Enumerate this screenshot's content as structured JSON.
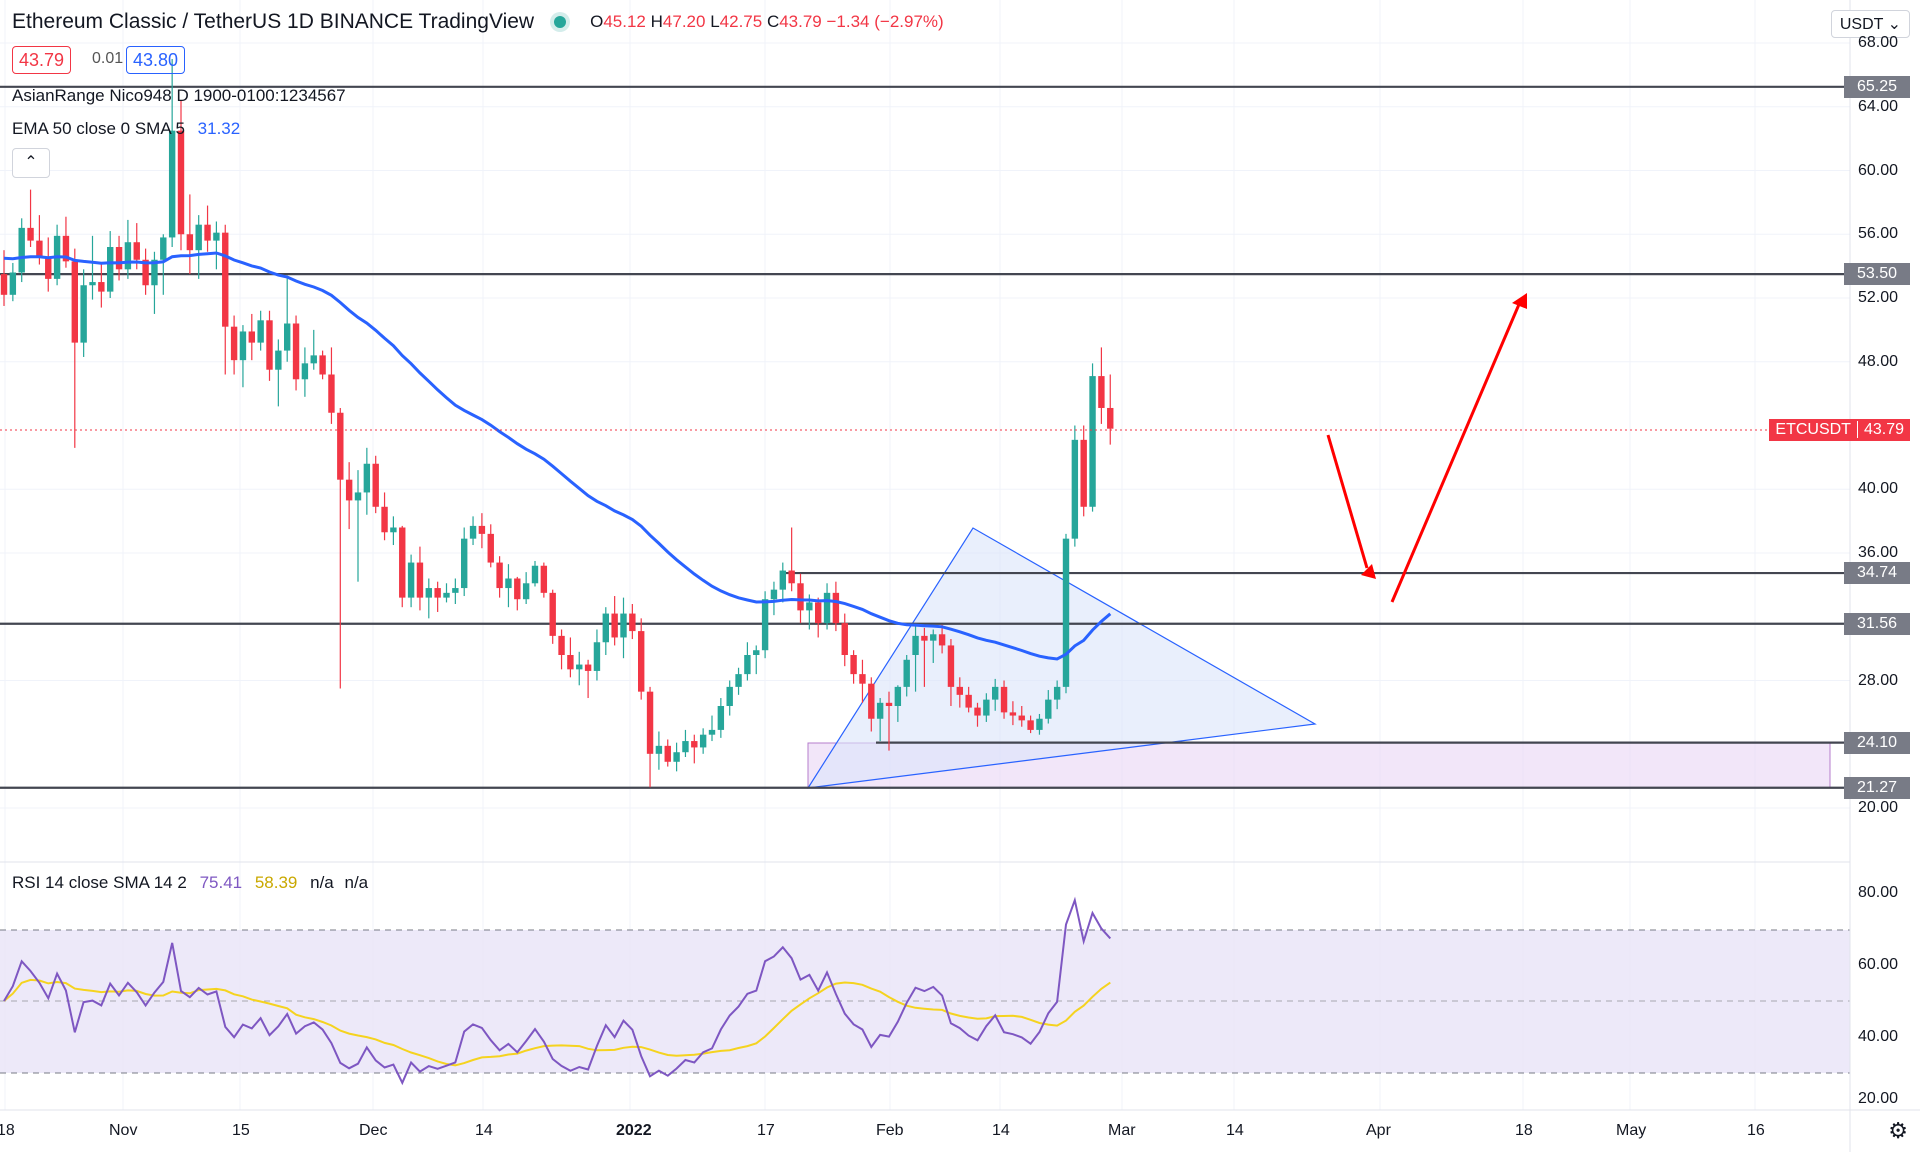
{
  "header": {
    "title": "Ethereum Classic / TetherUS  1D  BINANCE  TradingView",
    "o_label": "O",
    "o": "45.12",
    "h_label": "H",
    "h": "47.20",
    "l_label": "L",
    "l": "42.75",
    "c_label": "C",
    "c": "43.79",
    "change": "−1.34 (−2.97%)",
    "sell_price": "43.79",
    "spread": "0.01",
    "buy_price": "43.80"
  },
  "indicators": {
    "asian_range": "AsianRange Nico948 D 1900-0100:1234567",
    "ema_label": "EMA 50 close 0 SMA 5",
    "ema_value": "31.32",
    "rsi_label": "RSI 14 close SMA 14 2",
    "rsi_value": "75.41",
    "rsi_sma_value": "58.39",
    "rsi_na1": "n/a",
    "rsi_na2": "n/a"
  },
  "currency_selector": "USDT",
  "symbol_tag": "ETCUSDT",
  "current_price": "43.79",
  "price_axis": [
    "68.00",
    "64.00",
    "60.00",
    "56.00",
    "52.00",
    "48.00",
    "40.00",
    "36.00",
    "28.00",
    "20.00"
  ],
  "level_labels": [
    "65.25",
    "53.50",
    "34.74",
    "31.56",
    "24.10",
    "21.27"
  ],
  "rsi_axis": [
    "80.00",
    "60.00",
    "40.00",
    "20.00"
  ],
  "time_axis": [
    "18",
    "Nov",
    "15",
    "Dec",
    "14",
    "2022",
    "17",
    "Feb",
    "14",
    "Mar",
    "14",
    "Apr",
    "18",
    "May",
    "16"
  ],
  "colors": {
    "up": "#26a69a",
    "down": "#f23645",
    "ema": "#2962ff",
    "rsi": "#7e57c2",
    "rsi_sma": "#f5d31f",
    "level": "#434651",
    "arrow": "#ff0000"
  },
  "chart_data": {
    "type": "candlestick",
    "series": [
      {
        "name": "ETCUSDT",
        "x_start": "2021-10-18",
        "interval": "1D",
        "ohlc": [
          [
            53.5,
            55.0,
            51.5,
            52.2
          ],
          [
            52.2,
            54.2,
            51.8,
            53.6
          ],
          [
            53.6,
            57.0,
            53.0,
            56.4
          ],
          [
            56.4,
            58.8,
            55.2,
            55.6
          ],
          [
            55.6,
            57.2,
            54.1,
            54.6
          ],
          [
            54.6,
            55.8,
            52.4,
            53.2
          ],
          [
            53.2,
            56.6,
            52.8,
            55.9
          ],
          [
            55.9,
            57.1,
            53.9,
            54.3
          ],
          [
            54.3,
            55.1,
            42.6,
            49.2
          ],
          [
            49.2,
            53.8,
            48.3,
            52.8
          ],
          [
            52.8,
            55.9,
            51.9,
            53.0
          ],
          [
            53.0,
            54.1,
            51.4,
            52.4
          ],
          [
            52.4,
            56.2,
            52.0,
            55.2
          ],
          [
            55.2,
            55.9,
            53.1,
            53.8
          ],
          [
            53.8,
            56.9,
            53.2,
            55.5
          ],
          [
            55.5,
            56.7,
            53.8,
            54.4
          ],
          [
            54.4,
            55.1,
            52.2,
            52.8
          ],
          [
            52.8,
            54.9,
            51.0,
            54.4
          ],
          [
            54.4,
            56.0,
            52.2,
            55.8
          ],
          [
            55.8,
            67.0,
            55.2,
            62.5
          ],
          [
            62.5,
            64.4,
            55.0,
            56.0
          ],
          [
            56.0,
            58.5,
            53.5,
            55.0
          ],
          [
            55.0,
            57.2,
            53.2,
            56.6
          ],
          [
            56.6,
            57.8,
            54.9,
            55.6
          ],
          [
            55.6,
            56.8,
            53.8,
            56.1
          ],
          [
            56.1,
            56.6,
            47.2,
            50.2
          ],
          [
            50.2,
            50.9,
            47.2,
            48.1
          ],
          [
            48.1,
            50.3,
            46.4,
            49.9
          ],
          [
            49.9,
            51.0,
            48.1,
            49.2
          ],
          [
            49.2,
            51.2,
            48.7,
            50.6
          ],
          [
            50.6,
            51.2,
            46.8,
            47.5
          ],
          [
            47.5,
            49.4,
            45.2,
            48.7
          ],
          [
            48.7,
            53.4,
            48.0,
            50.4
          ],
          [
            50.4,
            50.9,
            46.2,
            46.9
          ],
          [
            46.9,
            48.9,
            45.8,
            47.9
          ],
          [
            47.9,
            50.0,
            47.5,
            48.4
          ],
          [
            48.4,
            48.7,
            46.9,
            47.2
          ],
          [
            47.2,
            48.9,
            44.1,
            44.8
          ],
          [
            44.8,
            45.1,
            27.5,
            40.6
          ],
          [
            40.6,
            41.7,
            37.5,
            39.3
          ],
          [
            39.3,
            41.2,
            34.2,
            39.8
          ],
          [
            39.8,
            42.6,
            38.4,
            41.6
          ],
          [
            41.6,
            42.1,
            38.5,
            38.9
          ],
          [
            38.9,
            39.8,
            36.8,
            37.3
          ],
          [
            37.3,
            38.3,
            36.5,
            37.6
          ],
          [
            37.6,
            37.7,
            32.6,
            33.2
          ],
          [
            33.2,
            35.9,
            32.6,
            35.4
          ],
          [
            35.4,
            36.4,
            32.4,
            33.2
          ],
          [
            33.2,
            34.4,
            31.9,
            33.8
          ],
          [
            33.8,
            34.2,
            32.3,
            33.2
          ],
          [
            33.2,
            34.1,
            32.9,
            33.5
          ],
          [
            33.5,
            34.4,
            32.8,
            33.8
          ],
          [
            33.8,
            37.6,
            33.3,
            36.9
          ],
          [
            36.9,
            38.3,
            36.5,
            37.7
          ],
          [
            37.7,
            38.5,
            36.3,
            37.2
          ],
          [
            37.2,
            37.8,
            35.1,
            35.4
          ],
          [
            35.4,
            35.8,
            33.2,
            33.8
          ],
          [
            33.8,
            35.3,
            32.6,
            34.4
          ],
          [
            34.4,
            34.5,
            32.4,
            33.1
          ],
          [
            33.1,
            34.8,
            32.8,
            34.1
          ],
          [
            34.1,
            35.5,
            33.9,
            35.2
          ],
          [
            35.2,
            35.4,
            33.2,
            33.5
          ],
          [
            33.5,
            33.7,
            30.3,
            30.8
          ],
          [
            30.8,
            31.2,
            28.7,
            29.6
          ],
          [
            29.6,
            30.7,
            28.2,
            28.7
          ],
          [
            28.7,
            29.8,
            27.7,
            29.0
          ],
          [
            29.0,
            29.3,
            26.9,
            28.6
          ],
          [
            28.6,
            31.2,
            28.0,
            30.4
          ],
          [
            30.4,
            32.6,
            29.6,
            32.2
          ],
          [
            32.2,
            33.3,
            30.2,
            30.7
          ],
          [
            30.7,
            33.2,
            29.4,
            32.2
          ],
          [
            32.2,
            32.8,
            30.6,
            31.1
          ],
          [
            31.1,
            31.9,
            26.8,
            27.3
          ],
          [
            27.3,
            27.6,
            21.3,
            23.4
          ],
          [
            23.4,
            24.8,
            22.4,
            23.9
          ],
          [
            23.9,
            24.3,
            22.6,
            22.9
          ],
          [
            22.9,
            24.1,
            22.3,
            23.5
          ],
          [
            23.5,
            24.9,
            23.2,
            24.2
          ],
          [
            24.2,
            24.6,
            22.8,
            23.8
          ],
          [
            23.8,
            25.0,
            23.4,
            24.6
          ],
          [
            24.6,
            25.8,
            24.2,
            24.9
          ],
          [
            24.9,
            26.9,
            24.4,
            26.4
          ],
          [
            26.4,
            28.0,
            25.8,
            27.6
          ],
          [
            27.6,
            28.8,
            27.1,
            28.4
          ],
          [
            28.4,
            30.4,
            28.0,
            29.6
          ],
          [
            29.6,
            30.2,
            28.4,
            29.9
          ],
          [
            29.9,
            33.6,
            29.4,
            33.1
          ],
          [
            33.1,
            34.2,
            32.1,
            33.7
          ],
          [
            33.7,
            35.4,
            32.9,
            34.9
          ],
          [
            34.9,
            37.6,
            33.6,
            34.1
          ],
          [
            34.1,
            34.7,
            31.6,
            32.4
          ],
          [
            32.4,
            33.4,
            31.2,
            32.9
          ],
          [
            32.9,
            33.2,
            30.7,
            31.6
          ],
          [
            31.6,
            34.1,
            31.2,
            33.5
          ],
          [
            33.5,
            34.2,
            31.1,
            31.6
          ],
          [
            31.6,
            32.2,
            28.9,
            29.6
          ],
          [
            29.6,
            29.9,
            27.8,
            28.4
          ],
          [
            28.4,
            29.3,
            26.6,
            27.8
          ],
          [
            27.8,
            28.2,
            24.8,
            25.6
          ],
          [
            25.6,
            26.9,
            24.2,
            26.6
          ],
          [
            26.6,
            27.3,
            23.6,
            26.4
          ],
          [
            26.4,
            27.7,
            25.4,
            27.6
          ],
          [
            27.6,
            29.6,
            27.0,
            29.3
          ],
          [
            29.6,
            31.5,
            27.3,
            30.8
          ],
          [
            30.8,
            31.3,
            27.6,
            30.5
          ],
          [
            30.5,
            31.2,
            29.1,
            30.9
          ],
          [
            30.9,
            31.5,
            29.7,
            30.2
          ],
          [
            30.2,
            30.6,
            26.4,
            27.6
          ],
          [
            27.6,
            28.2,
            26.3,
            27.1
          ],
          [
            27.1,
            27.6,
            26.0,
            26.3
          ],
          [
            26.3,
            26.6,
            25.1,
            25.8
          ],
          [
            25.8,
            27.2,
            25.4,
            26.8
          ],
          [
            26.8,
            28.1,
            26.1,
            27.6
          ],
          [
            27.6,
            28.0,
            25.6,
            26.0
          ],
          [
            26.0,
            26.7,
            25.2,
            25.8
          ],
          [
            25.8,
            26.4,
            25.1,
            25.5
          ],
          [
            25.5,
            25.8,
            24.7,
            24.9
          ],
          [
            24.9,
            25.9,
            24.6,
            25.6
          ],
          [
            25.6,
            27.4,
            25.3,
            26.8
          ],
          [
            26.8,
            28.0,
            26.2,
            27.6
          ],
          [
            27.6,
            37.2,
            27.2,
            36.9
          ],
          [
            36.9,
            44.0,
            36.4,
            43.1
          ],
          [
            43.1,
            44.0,
            38.3,
            38.9
          ],
          [
            38.9,
            47.9,
            38.6,
            47.1
          ],
          [
            47.1,
            48.9,
            44.1,
            45.1
          ],
          [
            45.1,
            47.2,
            42.8,
            43.8
          ]
        ]
      },
      {
        "name": "EMA 50",
        "values_note": "smooth moving average",
        "last": 31.32
      }
    ],
    "levels": [
      65.25,
      53.5,
      34.74,
      31.56,
      24.1,
      21.27
    ],
    "ylim_price": [
      18.8,
      70.0
    ],
    "rsi": {
      "ylim": [
        20,
        87
      ],
      "bands": [
        70,
        50,
        30
      ],
      "last": 75.41,
      "sma_last": 58.39
    }
  }
}
